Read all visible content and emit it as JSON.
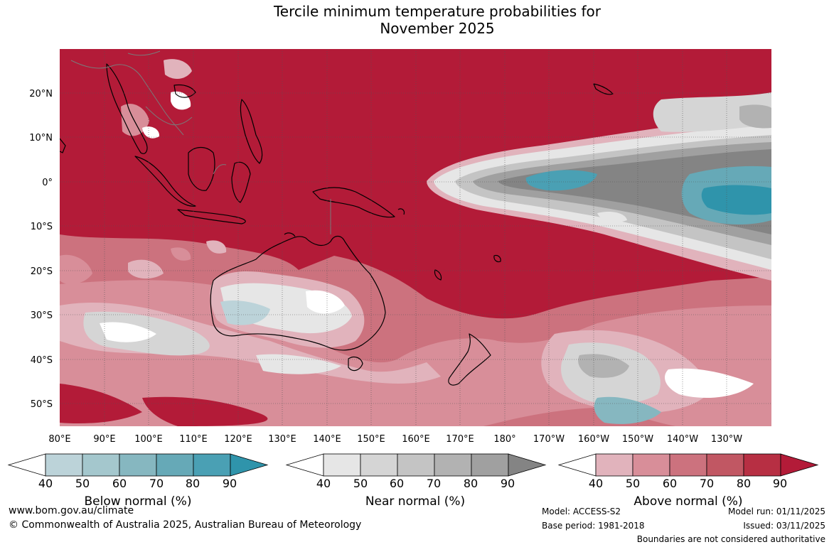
{
  "title_line1": "Tercile minimum temperature probabilities for",
  "title_line2": "November 2025",
  "lat_labels": [
    "20°N",
    "10°N",
    "0°",
    "10°S",
    "20°S",
    "30°S",
    "40°S",
    "50°S"
  ],
  "lon_labels": [
    "80°E",
    "90°E",
    "100°E",
    "110°E",
    "120°E",
    "130°E",
    "140°E",
    "150°E",
    "160°E",
    "170°E",
    "180°",
    "170°W",
    "160°W",
    "150°W",
    "140°W",
    "130°W"
  ],
  "legend": {
    "ticks": [
      "40",
      "50",
      "60",
      "70",
      "80",
      "90"
    ],
    "below": {
      "label": "Below normal (%)",
      "colors": [
        "#ffffff",
        "#bcd3d9",
        "#a4c7cd",
        "#86b7c0",
        "#66a9b7",
        "#4aa0b4",
        "#2f94ab"
      ]
    },
    "near": {
      "label": "Near normal (%)",
      "colors": [
        "#ffffff",
        "#e6e6e6",
        "#d5d5d5",
        "#c4c4c4",
        "#b2b2b2",
        "#a0a0a0",
        "#848484"
      ]
    },
    "above": {
      "label": "Above normal (%)",
      "colors": [
        "#ffffff",
        "#e1b3bc",
        "#d88e99",
        "#cc727e",
        "#c15763",
        "#b72f43",
        "#b31b38"
      ]
    }
  },
  "footer": {
    "website": "www.bom.gov.au/climate",
    "copyright": "© Commonwealth of Australia 2025, Australian Bureau of Meteorology",
    "model": "Model: ACCESS-S2",
    "base_period": "Base period: 1981-2018",
    "model_run": "Model run: 01/11/2025",
    "issued": "Issued: 03/11/2025",
    "disclaimer": "Boundaries are not considered authoritative"
  }
}
